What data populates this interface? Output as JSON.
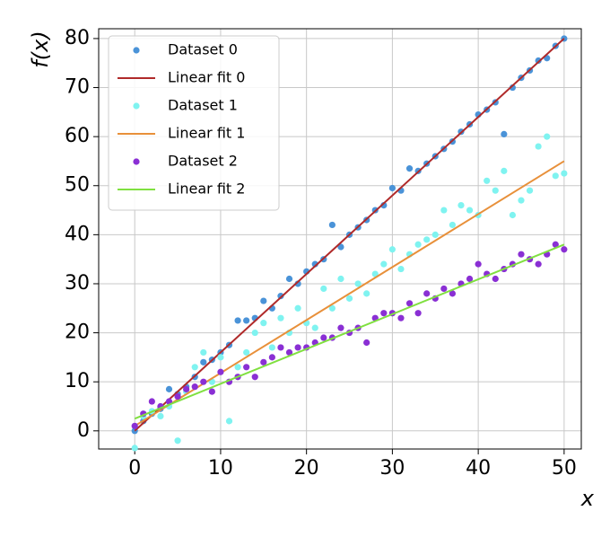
{
  "chart_data": {
    "type": "scatter",
    "xlabel": "x",
    "ylabel": "f(x)",
    "xlim": [
      -4.2,
      52
    ],
    "ylim": [
      -3.7,
      82
    ],
    "xticks": [
      0,
      10,
      20,
      30,
      40,
      50
    ],
    "yticks": [
      0,
      10,
      20,
      30,
      40,
      50,
      60,
      70,
      80
    ],
    "grid": true,
    "legend": "upper-left",
    "series": [
      {
        "name": "Dataset 0",
        "mode": "markers",
        "color": "#4a93d8",
        "x": [
          0,
          1,
          2,
          3,
          4,
          5,
          6,
          7,
          8,
          9,
          10,
          11,
          12,
          13,
          14,
          15,
          16,
          17,
          18,
          19,
          20,
          21,
          22,
          23,
          24,
          25,
          26,
          27,
          28,
          29,
          30,
          31,
          32,
          33,
          34,
          35,
          36,
          37,
          38,
          39,
          40,
          41,
          42,
          43,
          44,
          45,
          46,
          47,
          48,
          49,
          50
        ],
        "values": [
          0,
          2,
          3.5,
          4.5,
          8.5,
          7.5,
          9,
          11,
          14,
          14.5,
          16,
          17.5,
          22.5,
          22.5,
          23,
          26.5,
          25,
          27.5,
          31,
          30,
          32.5,
          34,
          35,
          42,
          37.5,
          40,
          41.5,
          43,
          45,
          46,
          49.5,
          49,
          53.5,
          53,
          54.5,
          56,
          57.5,
          59,
          61,
          62.5,
          64.5,
          65.5,
          67,
          60.5,
          70,
          72,
          73.5,
          75.5,
          76,
          78.5,
          80
        ]
      },
      {
        "name": "Linear fit 0",
        "mode": "line",
        "color": "#b02a2a",
        "x": [
          0,
          50
        ],
        "values": [
          0,
          80
        ]
      },
      {
        "name": "Dataset 1",
        "mode": "markers",
        "color": "#7ff3f0",
        "x": [
          0,
          1,
          2,
          3,
          4,
          5,
          6,
          7,
          8,
          9,
          10,
          11,
          12,
          13,
          14,
          15,
          16,
          17,
          18,
          19,
          20,
          21,
          22,
          23,
          24,
          25,
          26,
          27,
          28,
          29,
          30,
          31,
          32,
          33,
          34,
          35,
          36,
          37,
          38,
          39,
          40,
          41,
          42,
          43,
          44,
          45,
          46,
          47,
          48,
          49,
          50
        ],
        "values": [
          -3.5,
          3,
          4,
          3,
          5,
          -2,
          8,
          13,
          16,
          10,
          15,
          2,
          13,
          16,
          20,
          22,
          17,
          23,
          20,
          25,
          22,
          21,
          29,
          25,
          31,
          27,
          30,
          28,
          32,
          34,
          37,
          33,
          36,
          38,
          39,
          40,
          45,
          42,
          46,
          45,
          44,
          51,
          49,
          53,
          44,
          47,
          49,
          58,
          60,
          52,
          52.5
        ]
      },
      {
        "name": "Linear fit 1",
        "mode": "line",
        "color": "#e8903a",
        "x": [
          0,
          50
        ],
        "values": [
          1,
          55
        ]
      },
      {
        "name": "Dataset 2",
        "mode": "markers",
        "color": "#8a2fd4",
        "x": [
          0,
          1,
          2,
          3,
          4,
          5,
          6,
          7,
          8,
          9,
          10,
          11,
          12,
          13,
          14,
          15,
          16,
          17,
          18,
          19,
          20,
          21,
          22,
          23,
          24,
          25,
          26,
          27,
          28,
          29,
          30,
          31,
          32,
          33,
          34,
          35,
          36,
          37,
          38,
          39,
          40,
          41,
          42,
          43,
          44,
          45,
          46,
          47,
          48,
          49,
          50
        ],
        "values": [
          1,
          3.5,
          6,
          5,
          6,
          7,
          8.5,
          9,
          10,
          8,
          12,
          10,
          11,
          13,
          11,
          14,
          15,
          17,
          16,
          17,
          17,
          18,
          19,
          19,
          21,
          20,
          21,
          18,
          23,
          24,
          24,
          23,
          26,
          24,
          28,
          27,
          29,
          28,
          30,
          31,
          34,
          32,
          31,
          33,
          34,
          36,
          35,
          34,
          36,
          38,
          37
        ]
      },
      {
        "name": "Linear fit 2",
        "mode": "line",
        "color": "#80e040",
        "x": [
          0,
          50
        ],
        "values": [
          2.5,
          38
        ]
      }
    ]
  }
}
